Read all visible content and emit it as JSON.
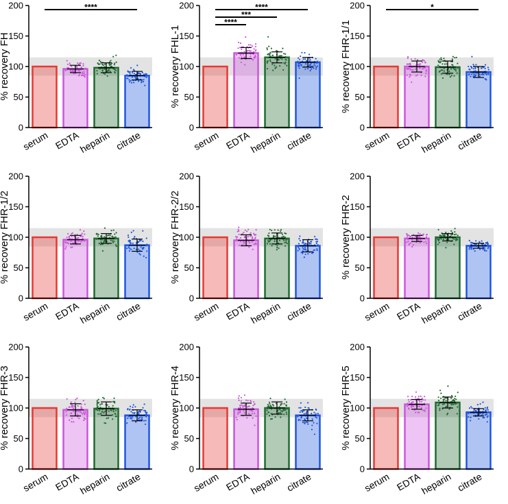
{
  "colors": {
    "serum": "#e53935",
    "edta": "#cc55dd",
    "heparin": "#1f6b30",
    "citrate": "#1e56e0",
    "band": "#e3e3e3"
  },
  "chart_data": [
    {
      "type": "bar",
      "ylabel": "% recovery FH",
      "categories": [
        "serum",
        "EDTA",
        "heparin",
        "citrate"
      ],
      "values": [
        100,
        96,
        98,
        85
      ],
      "errors": [
        0,
        6,
        8,
        7
      ],
      "spread": [
        0,
        12,
        14,
        12
      ],
      "ylim": [
        0,
        200
      ],
      "yticks": [
        "0",
        "50",
        "100",
        "150",
        "200"
      ],
      "band": [
        85,
        115
      ],
      "significance": [
        {
          "from": 0,
          "to": 3,
          "label": "****"
        }
      ]
    },
    {
      "type": "bar",
      "ylabel": "% recovery FHL-1",
      "categories": [
        "serum",
        "EDTA",
        "heparin",
        "citrate"
      ],
      "values": [
        100,
        122,
        115,
        107
      ],
      "errors": [
        0,
        9,
        9,
        8
      ],
      "spread": [
        0,
        16,
        16,
        14
      ],
      "ylim": [
        0,
        200
      ],
      "yticks": [
        "0",
        "50",
        "100",
        "150",
        "200"
      ],
      "band": [
        85,
        115
      ],
      "significance": [
        {
          "from": 0,
          "to": 3,
          "label": "****"
        },
        {
          "from": 0,
          "to": 2,
          "label": "***"
        },
        {
          "from": 0,
          "to": 1,
          "label": "****"
        }
      ]
    },
    {
      "type": "bar",
      "ylabel": "% recovery FHR-1/1",
      "categories": [
        "serum",
        "EDTA",
        "heparin",
        "citrate"
      ],
      "values": [
        100,
        100,
        99,
        91
      ],
      "errors": [
        0,
        9,
        10,
        9
      ],
      "spread": [
        0,
        14,
        16,
        14
      ],
      "ylim": [
        0,
        200
      ],
      "yticks": [
        "0",
        "50",
        "100",
        "150",
        "200"
      ],
      "band": [
        85,
        115
      ],
      "significance": [
        {
          "from": 0,
          "to": 3,
          "label": "*"
        }
      ]
    },
    {
      "type": "bar",
      "ylabel": "% recovery FHR-1/2",
      "categories": [
        "serum",
        "EDTA",
        "heparin",
        "citrate"
      ],
      "values": [
        100,
        96,
        98,
        87
      ],
      "errors": [
        0,
        7,
        8,
        10
      ],
      "spread": [
        0,
        12,
        13,
        16
      ],
      "ylim": [
        0,
        200
      ],
      "yticks": [
        "0",
        "50",
        "100",
        "150",
        "200"
      ],
      "band": [
        85,
        115
      ],
      "significance": []
    },
    {
      "type": "bar",
      "ylabel": "% recovery FHR-2/2",
      "categories": [
        "serum",
        "EDTA",
        "heparin",
        "citrate"
      ],
      "values": [
        100,
        95,
        98,
        86
      ],
      "errors": [
        0,
        9,
        9,
        10
      ],
      "spread": [
        0,
        16,
        16,
        16
      ],
      "ylim": [
        0,
        200
      ],
      "yticks": [
        "0",
        "50",
        "100",
        "150",
        "200"
      ],
      "band": [
        85,
        115
      ],
      "significance": []
    },
    {
      "type": "bar",
      "ylabel": "% recovery FHR-2",
      "categories": [
        "serum",
        "EDTA",
        "heparin",
        "citrate"
      ],
      "values": [
        100,
        98,
        100,
        86
      ],
      "errors": [
        0,
        5,
        6,
        4
      ],
      "spread": [
        0,
        10,
        11,
        8
      ],
      "ylim": [
        0,
        200
      ],
      "yticks": [
        "0",
        "50",
        "100",
        "150",
        "200"
      ],
      "band": [
        85,
        115
      ],
      "significance": []
    },
    {
      "type": "bar",
      "ylabel": "% recovery FHR-3",
      "categories": [
        "serum",
        "EDTA",
        "heparin",
        "citrate"
      ],
      "values": [
        100,
        97,
        99,
        88
      ],
      "errors": [
        0,
        10,
        11,
        9
      ],
      "spread": [
        0,
        16,
        18,
        15
      ],
      "ylim": [
        0,
        200
      ],
      "yticks": [
        "0",
        "50",
        "100",
        "150",
        "200"
      ],
      "band": [
        85,
        115
      ],
      "significance": []
    },
    {
      "type": "bar",
      "ylabel": "% recovery FHR-4",
      "categories": [
        "serum",
        "EDTA",
        "heparin",
        "citrate"
      ],
      "values": [
        100,
        98,
        100,
        88
      ],
      "errors": [
        0,
        10,
        10,
        9
      ],
      "spread": [
        0,
        16,
        16,
        15
      ],
      "ylim": [
        0,
        200
      ],
      "yticks": [
        "0",
        "50",
        "100",
        "150",
        "200"
      ],
      "band": [
        85,
        115
      ],
      "significance": []
    },
    {
      "type": "bar",
      "ylabel": "% recovery FHR-5",
      "categories": [
        "serum",
        "EDTA",
        "heparin",
        "citrate"
      ],
      "values": [
        100,
        106,
        109,
        93
      ],
      "errors": [
        0,
        8,
        9,
        6
      ],
      "spread": [
        0,
        14,
        15,
        11
      ],
      "ylim": [
        0,
        200
      ],
      "yticks": [
        "0",
        "50",
        "100",
        "150",
        "200"
      ],
      "band": [
        85,
        115
      ],
      "significance": []
    }
  ]
}
